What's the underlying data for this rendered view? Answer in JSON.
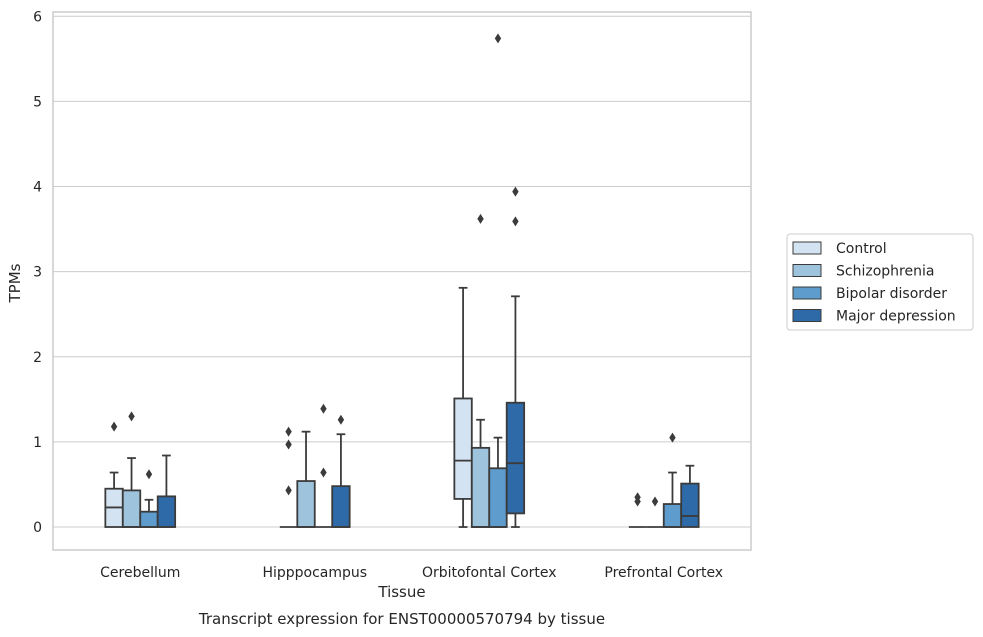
{
  "chart_data": {
    "type": "box",
    "title": "",
    "xlabel": "Tissue",
    "ylabel": "TPMs",
    "caption": "Transcript expression for ENST00000570794 by tissue",
    "ylim": [
      -0.27,
      6.05
    ],
    "yticks": [
      "0",
      "1",
      "2",
      "3",
      "4",
      "5",
      "6"
    ],
    "grid": true,
    "legend_position": "right",
    "categories": [
      "Cerebellum",
      "Hipppocampus",
      "Orbitofontal Cortex",
      "Prefrontal Cortex"
    ],
    "series": [
      {
        "name": "Control",
        "color": "#d4e3f2",
        "boxes": [
          {
            "whislo": 0,
            "q1": 0,
            "median": 0.23,
            "q3": 0.45,
            "whishi": 0.64,
            "fliers": [
              1.18
            ]
          },
          {
            "whislo": 0,
            "q1": 0,
            "median": 0,
            "q3": 0,
            "whishi": 0,
            "fliers": [
              0.43,
              0.97,
              1.12
            ]
          },
          {
            "whislo": 0,
            "q1": 0.33,
            "median": 0.78,
            "q3": 1.51,
            "whishi": 2.81,
            "fliers": []
          },
          {
            "whislo": 0,
            "q1": 0,
            "median": 0,
            "q3": 0,
            "whishi": 0,
            "fliers": [
              0.3,
              0.35
            ]
          }
        ]
      },
      {
        "name": "Schizophrenia",
        "color": "#9dc3dd",
        "boxes": [
          {
            "whislo": 0,
            "q1": 0,
            "median": 0,
            "q3": 0.43,
            "whishi": 0.81,
            "fliers": [
              1.3
            ]
          },
          {
            "whislo": 0,
            "q1": 0,
            "median": 0,
            "q3": 0.54,
            "whishi": 1.12,
            "fliers": []
          },
          {
            "whislo": 0,
            "q1": 0,
            "median": 0,
            "q3": 0.93,
            "whishi": 1.26,
            "fliers": [
              3.62
            ]
          },
          {
            "whislo": 0,
            "q1": 0,
            "median": 0,
            "q3": 0,
            "whishi": 0,
            "fliers": [
              0.3
            ]
          }
        ]
      },
      {
        "name": "Bipolar disorder",
        "color": "#5d9ccd",
        "boxes": [
          {
            "whislo": 0,
            "q1": 0,
            "median": 0,
            "q3": 0.18,
            "whishi": 0.32,
            "fliers": [
              0.62
            ]
          },
          {
            "whislo": 0,
            "q1": 0,
            "median": 0,
            "q3": 0,
            "whishi": 0,
            "fliers": [
              0.64,
              1.39
            ]
          },
          {
            "whislo": 0,
            "q1": 0,
            "median": 0,
            "q3": 0.69,
            "whishi": 1.05,
            "fliers": [
              5.74
            ]
          },
          {
            "whislo": 0,
            "q1": 0,
            "median": 0,
            "q3": 0.27,
            "whishi": 0.64,
            "fliers": [
              1.05
            ]
          }
        ]
      },
      {
        "name": "Major depression",
        "color": "#2e6aa8",
        "boxes": [
          {
            "whislo": 0,
            "q1": 0,
            "median": 0,
            "q3": 0.36,
            "whishi": 0.84,
            "fliers": []
          },
          {
            "whislo": 0,
            "q1": 0,
            "median": 0,
            "q3": 0.48,
            "whishi": 1.09,
            "fliers": [
              1.26
            ]
          },
          {
            "whislo": 0,
            "q1": 0.16,
            "median": 0.75,
            "q3": 1.46,
            "whishi": 2.71,
            "fliers": [
              3.59,
              3.94
            ]
          },
          {
            "whislo": 0,
            "q1": 0,
            "median": 0.13,
            "q3": 0.51,
            "whishi": 0.72,
            "fliers": []
          }
        ]
      }
    ]
  }
}
